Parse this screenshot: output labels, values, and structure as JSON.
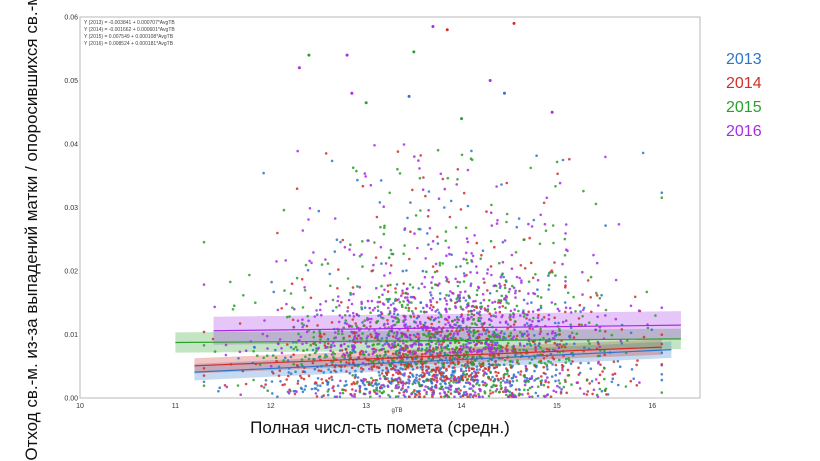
{
  "chart_data": {
    "type": "scatter",
    "xlabel_small": "gTB",
    "xlabel": "Полная числ-сть помета (средн.)",
    "ylabel": "Отход св.-м. из-за выпадений матки / опоросившихся св.-м.",
    "xlim": [
      10,
      16.5
    ],
    "ylim": [
      0,
      0.06
    ],
    "x_ticks": [
      "10",
      "11",
      "12",
      "13",
      "14",
      "15",
      "16"
    ],
    "y_ticks": [
      "0.00",
      "0.01",
      "0.02",
      "0.03",
      "0.04",
      "0.05",
      "0.06"
    ],
    "grid": false,
    "legend_position": "right",
    "equations": [
      "Y (2013) = -0.003841 + 0.000707*AvgTB",
      "Y (2014) = -0.001662 + 0.000601*AvgTB",
      "Y (2015) = 0.007549 + 0.000108*AvgTB",
      "Y (2016) = 0.008524 + 0.000181*AvgTB"
    ],
    "series": [
      {
        "name": "2013",
        "color": "#2e75c9",
        "intercept": -0.003841,
        "slope": 0.000707,
        "x_range": [
          11.2,
          16.2
        ],
        "band": 0.0013
      },
      {
        "name": "2014",
        "color": "#d0302b",
        "intercept": -0.001662,
        "slope": 0.000601,
        "x_range": [
          11.2,
          16.1
        ],
        "band": 0.0012
      },
      {
        "name": "2015",
        "color": "#2ca02c",
        "intercept": 0.007549,
        "slope": 0.000108,
        "x_range": [
          11.0,
          16.3
        ],
        "band": 0.0016
      },
      {
        "name": "2016",
        "color": "#a62ee6",
        "intercept": 0.008524,
        "slope": 0.000181,
        "x_range": [
          11.4,
          16.3
        ],
        "band": 0.0022
      }
    ],
    "outliers": [
      {
        "series": "2015",
        "x": 12.4,
        "y": 0.054
      },
      {
        "series": "2016",
        "x": 12.3,
        "y": 0.052
      },
      {
        "series": "2016",
        "x": 12.8,
        "y": 0.054
      },
      {
        "series": "2016",
        "x": 12.85,
        "y": 0.048
      },
      {
        "series": "2015",
        "x": 13.0,
        "y": 0.0465
      },
      {
        "series": "2013",
        "x": 13.45,
        "y": 0.0475
      },
      {
        "series": "2015",
        "x": 13.5,
        "y": 0.0545
      },
      {
        "series": "2016",
        "x": 13.7,
        "y": 0.0585
      },
      {
        "series": "2014",
        "x": 13.85,
        "y": 0.058
      },
      {
        "series": "2014",
        "x": 14.55,
        "y": 0.059
      },
      {
        "series": "2016",
        "x": 14.3,
        "y": 0.05
      },
      {
        "series": "2013",
        "x": 14.45,
        "y": 0.048
      },
      {
        "series": "2016",
        "x": 14.95,
        "y": 0.045
      },
      {
        "series": "2015",
        "x": 14.0,
        "y": 0.044
      }
    ]
  }
}
